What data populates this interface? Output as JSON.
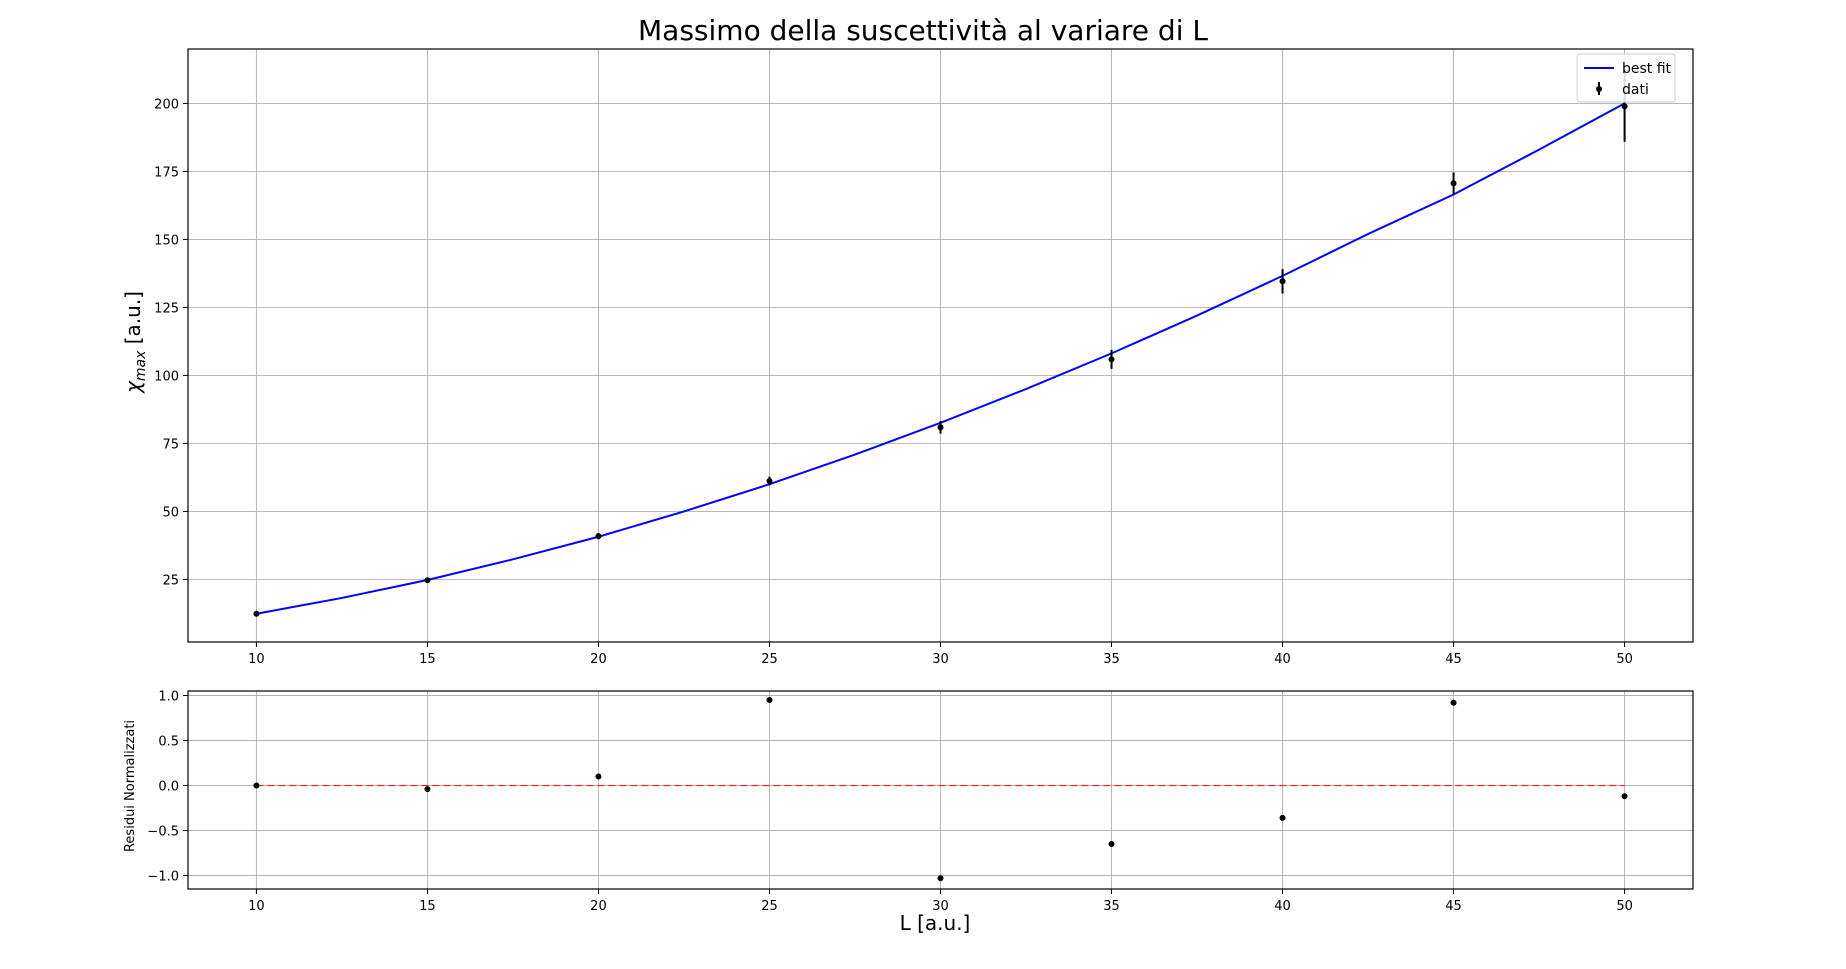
{
  "chart_data": [
    {
      "type": "line",
      "title": "Massimo della suscettività al variare di L",
      "xlabel": "",
      "ylabel_main": "χ",
      "ylabel_sub": "max",
      "ylabel_unit": " [a.u.]",
      "xlim": [
        8,
        52
      ],
      "ylim": [
        2,
        220
      ],
      "xticks": [
        10,
        15,
        20,
        25,
        30,
        35,
        40,
        45,
        50
      ],
      "yticks": [
        25,
        50,
        75,
        100,
        125,
        150,
        175,
        200
      ],
      "grid": true,
      "legend_position": "top-right",
      "legend": [
        {
          "label": "best fit",
          "kind": "line",
          "color": "#0000ff"
        },
        {
          "label": "dati",
          "kind": "errorbar",
          "color": "#000000"
        }
      ],
      "series": [
        {
          "name": "best fit",
          "kind": "line",
          "color": "#0000ff",
          "x": [
            10,
            12.5,
            15,
            17.5,
            20,
            22.5,
            25,
            27.5,
            30,
            32.5,
            35,
            37.5,
            40,
            42.5,
            45,
            47.5,
            50
          ],
          "y": [
            12.4,
            18.2,
            24.8,
            32.4,
            40.7,
            50.0,
            60.0,
            70.9,
            82.6,
            95.0,
            108.1,
            122.0,
            136.6,
            152.0,
            166.5,
            183.0,
            200.0
          ]
        },
        {
          "name": "dati",
          "kind": "errorbar",
          "color": "#000000",
          "x": [
            10,
            15,
            20,
            25,
            30,
            35,
            40,
            45,
            50
          ],
          "y": [
            12.4,
            24.7,
            40.9,
            61.2,
            80.9,
            105.9,
            134.6,
            170.6,
            198.9
          ],
          "yerr": [
            0.4,
            0.8,
            1.2,
            1.6,
            2.3,
            3.5,
            4.5,
            4.0,
            13.0
          ]
        }
      ]
    },
    {
      "type": "scatter",
      "xlabel": "L [a.u.]",
      "ylabel": "Residui Normalizzati",
      "xlim": [
        8,
        52
      ],
      "ylim": [
        -1.15,
        1.05
      ],
      "xticks": [
        10,
        15,
        20,
        25,
        30,
        35,
        40,
        45,
        50
      ],
      "yticks": [
        -1.0,
        -0.5,
        0.0,
        0.5,
        1.0
      ],
      "ytick_labels": [
        "−1.0",
        "−0.5",
        "0.0",
        "0.5",
        "1.0"
      ],
      "grid": true,
      "reference_line": {
        "y": 0,
        "x": [
          10,
          50
        ],
        "color": "#ff0000",
        "style": "dashed"
      },
      "series": [
        {
          "kind": "scatter",
          "color": "#000000",
          "x": [
            10,
            15,
            20,
            25,
            30,
            35,
            40,
            45,
            50
          ],
          "y": [
            0.0,
            -0.04,
            0.1,
            0.95,
            -1.03,
            -0.65,
            -0.36,
            0.92,
            -0.12
          ]
        }
      ]
    }
  ]
}
